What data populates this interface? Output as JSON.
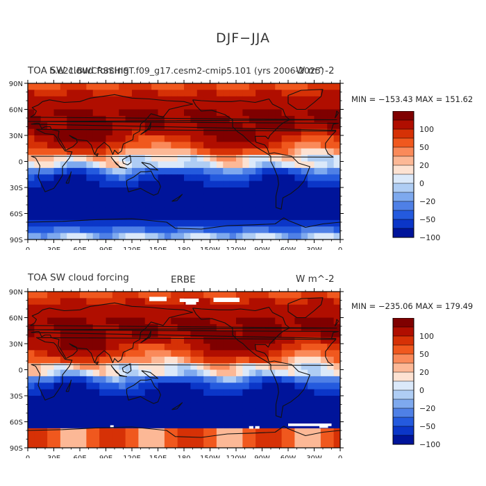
{
  "figure": {
    "title": "DJF−JJA"
  },
  "panels": [
    {
      "left_title": "TOA SW cloud forcing",
      "center_title": "b.e21.BWCRSSHIST.f09_g17.cesm2-cmip5.101 (yrs 2006-2025)",
      "right_title": "W m^-2",
      "stats": "MIN = −153.43  MAX = 151.62",
      "colorbar_labels": [
        "100",
        "50",
        "20",
        "0",
        "−20",
        "−50",
        "−100"
      ],
      "missing_data": false
    },
    {
      "left_title": "TOA SW cloud forcing",
      "center_title": "ERBE",
      "right_title": "W m^-2",
      "stats": "MIN = −235.06  MAX = 179.49",
      "colorbar_labels": [
        "100",
        "50",
        "20",
        "0",
        "−20",
        "−50",
        "−100"
      ],
      "missing_data": true
    }
  ],
  "axes": {
    "lat_labels": [
      "90N",
      "60N",
      "30N",
      "0",
      "30S",
      "60S",
      "90S"
    ],
    "lon_labels": [
      "0",
      "30E",
      "60E",
      "90E",
      "120E",
      "150E",
      "180",
      "150W",
      "120W",
      "90W",
      "60W",
      "30W",
      "0"
    ]
  },
  "colors": {
    "scale": [
      "#7f0000",
      "#b00e00",
      "#d63106",
      "#f0581e",
      "#fa8a5a",
      "#fcb896",
      "#fde2d2",
      "#dbe9fa",
      "#afcdf4",
      "#7ea9ee",
      "#4f80e6",
      "#245ade",
      "#0b36c8",
      "#00149a"
    ],
    "coast": "#111111",
    "missing": "#ffffff"
  }
}
